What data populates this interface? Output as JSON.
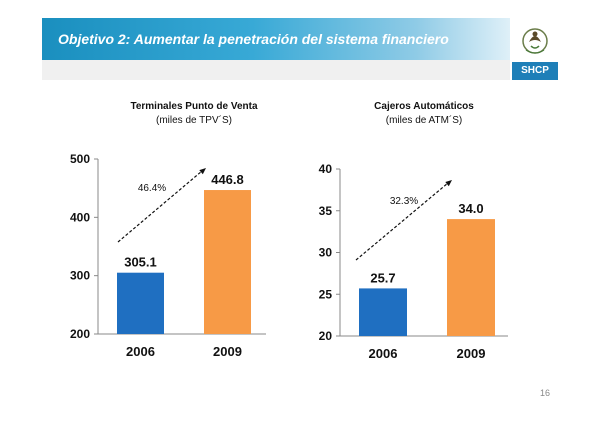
{
  "header": {
    "title": "Objetivo 2: Aumentar la penetración del sistema financiero",
    "logo_text": "SHCP",
    "emblem_icon": "mexican-coat-of-arms-icon"
  },
  "colors": {
    "banner": "#1a8fbf",
    "series_2006": "#1f6fc1",
    "series_2009": "#f79a46",
    "logo_bar": "#1e7fb8"
  },
  "page_number": "16",
  "chart_data": [
    {
      "type": "bar",
      "title": "Terminales Punto de Venta",
      "subtitle": "(miles de TPV´S)",
      "categories": [
        "2006",
        "2009"
      ],
      "values": [
        305.1,
        446.8
      ],
      "value_labels": [
        "305.1",
        "446.8"
      ],
      "ylim": [
        200,
        500
      ],
      "yticks": [
        200,
        300,
        400,
        500
      ],
      "growth_label": "46.4%",
      "grid": false
    },
    {
      "type": "bar",
      "title": "Cajeros Automáticos",
      "subtitle": "(miles de ATM´S)",
      "categories": [
        "2006",
        "2009"
      ],
      "values": [
        25.7,
        34.0
      ],
      "value_labels": [
        "25.7",
        "34.0"
      ],
      "ylim": [
        20,
        40
      ],
      "yticks": [
        20,
        25,
        30,
        35,
        40
      ],
      "growth_label": "32.3%",
      "grid": false
    }
  ]
}
